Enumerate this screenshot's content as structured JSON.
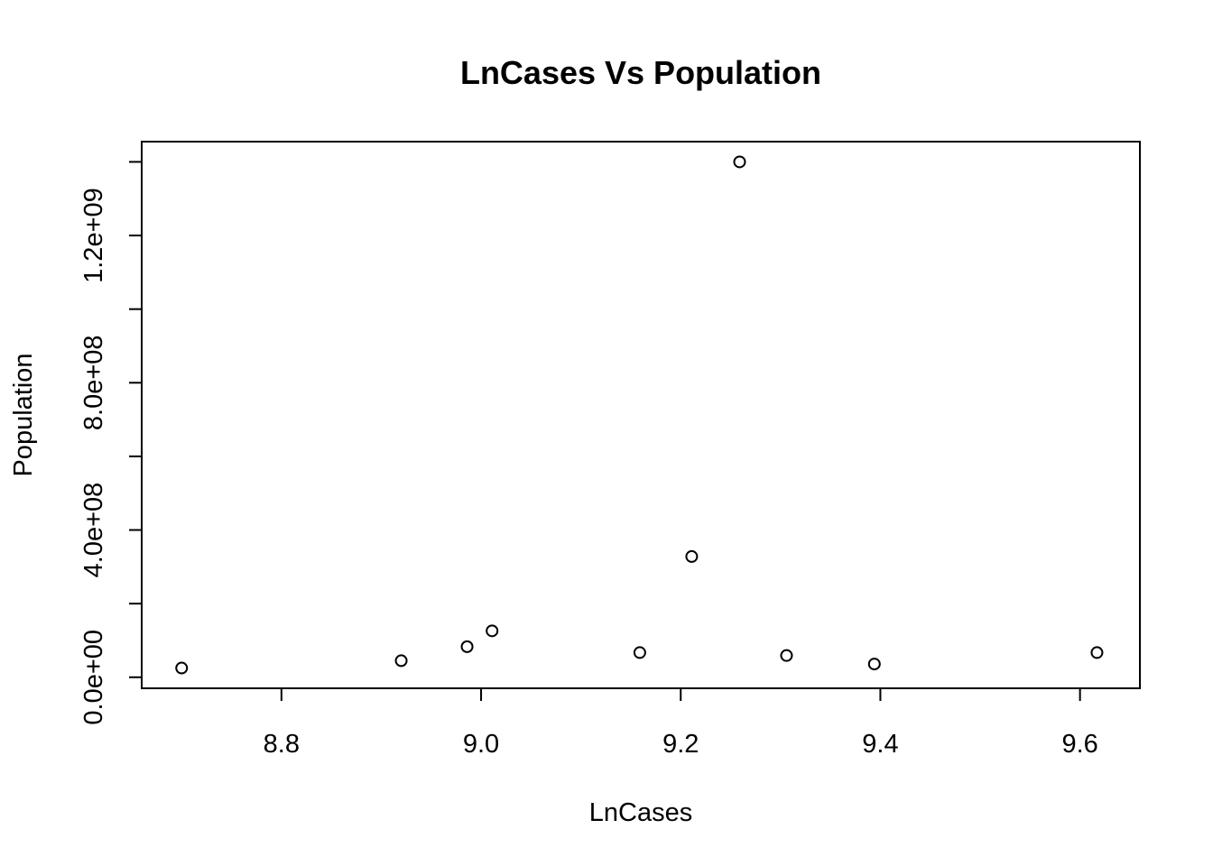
{
  "chart_data": {
    "type": "scatter",
    "title": "LnCases Vs Population",
    "xlabel": "LnCases",
    "ylabel": "Population",
    "xlim": [
      8.66,
      9.66
    ],
    "ylim": [
      -30000000,
      1455000000
    ],
    "x_ticks": [
      {
        "value": 8.8,
        "label": "8.8"
      },
      {
        "value": 9.0,
        "label": "9.0"
      },
      {
        "value": 9.2,
        "label": "9.2"
      },
      {
        "value": 9.4,
        "label": "9.4"
      },
      {
        "value": 9.6,
        "label": "9.6"
      }
    ],
    "y_ticks": [
      {
        "value": 0,
        "label": "0.0e+00"
      },
      {
        "value": 200000000,
        "label": ""
      },
      {
        "value": 400000000,
        "label": "4.0e+08"
      },
      {
        "value": 600000000,
        "label": ""
      },
      {
        "value": 800000000,
        "label": "8.0e+08"
      },
      {
        "value": 1000000000,
        "label": ""
      },
      {
        "value": 1200000000,
        "label": "1.2e+09"
      },
      {
        "value": 1400000000,
        "label": ""
      }
    ],
    "grid": false,
    "points": [
      {
        "x": 8.7,
        "y": 25000000
      },
      {
        "x": 8.92,
        "y": 45000000
      },
      {
        "x": 8.986,
        "y": 83000000
      },
      {
        "x": 9.011,
        "y": 126000000
      },
      {
        "x": 9.159,
        "y": 67000000
      },
      {
        "x": 9.211,
        "y": 328000000
      },
      {
        "x": 9.259,
        "y": 1400000000
      },
      {
        "x": 9.306,
        "y": 59000000
      },
      {
        "x": 9.394,
        "y": 36000000
      },
      {
        "x": 9.617,
        "y": 67000000
      }
    ]
  }
}
